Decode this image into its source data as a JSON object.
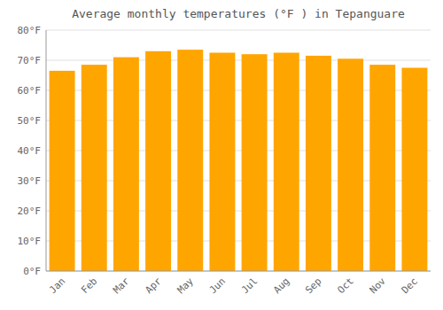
{
  "chart_data": {
    "type": "bar",
    "title": "Average monthly temperatures (°F ) in Tepanguare",
    "categories": [
      "Jan",
      "Feb",
      "Mar",
      "Apr",
      "May",
      "Jun",
      "Jul",
      "Aug",
      "Sep",
      "Oct",
      "Nov",
      "Dec"
    ],
    "values": [
      66.5,
      68.5,
      71.0,
      73.0,
      73.5,
      72.5,
      72.0,
      72.5,
      71.5,
      70.5,
      68.5,
      67.5
    ],
    "color": "#FFA500",
    "ylim": [
      0,
      80
    ],
    "yticks": [
      {
        "value": 0,
        "label": "0°F"
      },
      {
        "value": 10,
        "label": "10°F"
      },
      {
        "value": 20,
        "label": "20°F"
      },
      {
        "value": 30,
        "label": "30°F"
      },
      {
        "value": 40,
        "label": "40°F"
      },
      {
        "value": 50,
        "label": "50°F"
      },
      {
        "value": 60,
        "label": "60°F"
      },
      {
        "value": 70,
        "label": "70°F"
      },
      {
        "value": 80,
        "label": "80°F"
      }
    ],
    "grid": true
  }
}
